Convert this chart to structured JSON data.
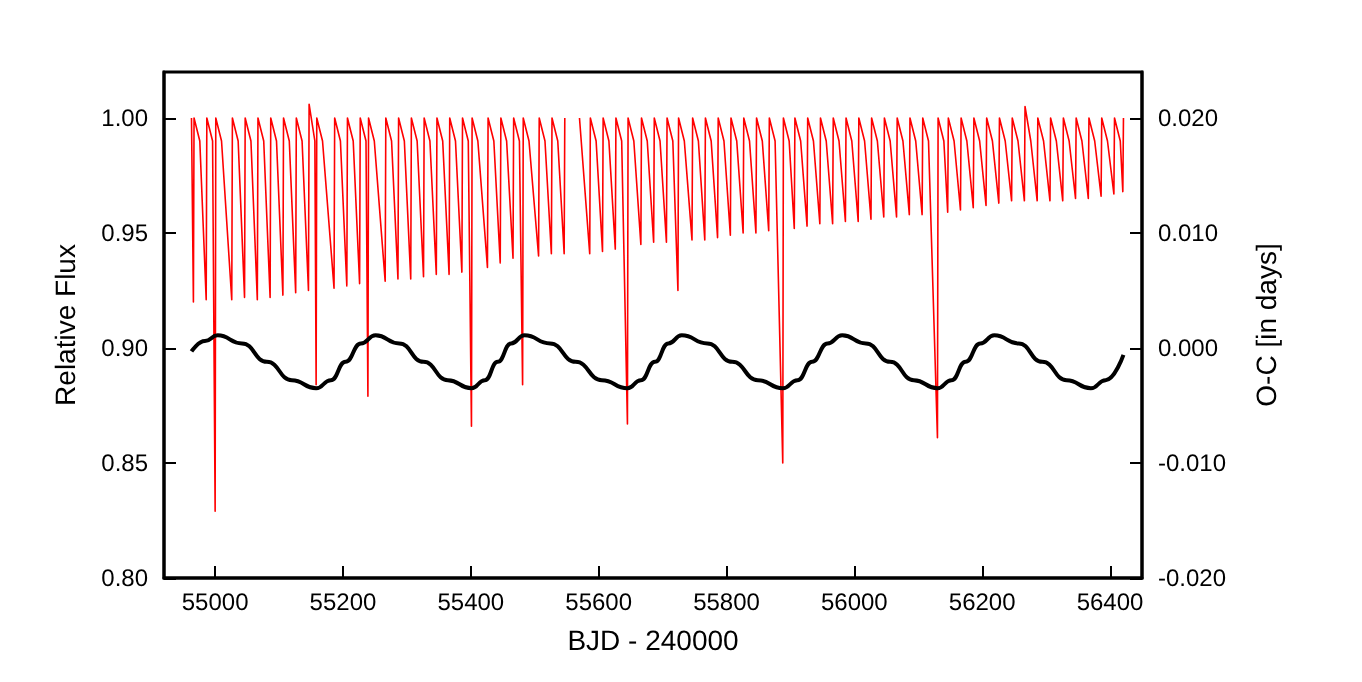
{
  "chart_data": {
    "type": "line",
    "xlabel": "BJD - 240000",
    "ylabel": "Relative Flux",
    "y2label": "O-C [in days]",
    "xlim": [
      54920,
      56450
    ],
    "xticks": [
      55000,
      55200,
      55400,
      55600,
      55800,
      56000,
      56200,
      56400
    ],
    "ylim": [
      0.8,
      1.02
    ],
    "yticks": [
      {
        "value": 0.8,
        "label": "0.80"
      },
      0.85,
      {
        "value": 0.9,
        "label": "0.90"
      },
      0.95,
      {
        "value": 1.0,
        "label": "1.00"
      }
    ],
    "y2lim": [
      -0.02,
      0.024
    ],
    "y2ticks": [
      {
        "value": -0.02,
        "label": "-0.020"
      },
      {
        "value": -0.01,
        "label": "-0.010"
      },
      {
        "value": 0,
        "label": "0.000"
      },
      {
        "value": 0.01,
        "label": "0.010"
      },
      {
        "value": 0.02,
        "label": "0.020"
      }
    ],
    "grid": false,
    "series": [
      {
        "color": "#ff0000",
        "x": [
          54963,
          54966,
          54967,
          54976,
          54986,
          54987,
          54996,
          55000,
          55001,
          55010,
          55026,
          55027,
          55036,
          55046,
          55047,
          55056,
          55066,
          55067,
          55076,
          55086,
          55087,
          55096,
          55106,
          55107,
          55116,
          55126,
          55127,
          55136,
          55146,
          55147,
          55156,
          55158,
          55159,
          55168,
          55186,
          55187,
          55196,
          55206,
          55207,
          55216,
          55226,
          55227,
          55236,
          55239,
          55240,
          55249,
          55266,
          55267,
          55276,
          55286,
          55287,
          55296,
          55306,
          55307,
          55316,
          55326,
          55327,
          55336,
          55346,
          55347,
          55356,
          55366,
          55367,
          55376,
          55386,
          55387,
          55396,
          55401,
          55402,
          55411,
          55426,
          55427,
          55436,
          55446,
          55447,
          55456,
          55466,
          55467,
          55476,
          55481,
          55482,
          55491,
          55506,
          55507,
          55516,
          55526,
          55527,
          55536,
          55546,
          55547,
          55558,
          55570,
          55586,
          55587,
          55596,
          55606,
          55607,
          55616,
          55626,
          55627,
          55636,
          55645,
          55646,
          55655,
          55666,
          55667,
          55676,
          55686,
          55687,
          55696,
          55706,
          55707,
          55716,
          55724,
          55725,
          55734,
          55746,
          55747,
          55756,
          55766,
          55767,
          55776,
          55786,
          55787,
          55796,
          55806,
          55807,
          55816,
          55826,
          55827,
          55836,
          55846,
          55847,
          55856,
          55866,
          55867,
          55876,
          55888,
          55889,
          55898,
          55906,
          55907,
          55916,
          55926,
          55927,
          55936,
          55946,
          55947,
          55956,
          55966,
          55967,
          55976,
          55986,
          55987,
          55996,
          56006,
          56007,
          56016,
          56026,
          56027,
          56036,
          56046,
          56047,
          56056,
          56066,
          56067,
          56076,
          56086,
          56087,
          56096,
          56106,
          56107,
          56116,
          56130,
          56131,
          56140,
          56146,
          56147,
          56156,
          56166,
          56167,
          56176,
          56186,
          56187,
          56196,
          56206,
          56207,
          56216,
          56226,
          56227,
          56236,
          56246,
          56247,
          56256,
          56266,
          56267,
          56276,
          56286,
          56287,
          56296,
          56306,
          56307,
          56316,
          56326,
          56327,
          56336,
          56346,
          56347,
          56356,
          56366,
          56367,
          56376,
          56386,
          56387,
          56396,
          56406,
          56407,
          56416,
          56420,
          56421
        ],
        "values": [
          1.0,
          0.92,
          1.0,
          0.99,
          0.921,
          1.0,
          0.99,
          0.829,
          1.0,
          0.99,
          0.921,
          1.0,
          0.99,
          0.922,
          1.0,
          0.99,
          0.921,
          1.0,
          0.99,
          0.922,
          1.0,
          0.99,
          0.923,
          1.0,
          0.99,
          0.924,
          1.0,
          0.99,
          0.925,
          1.006,
          0.99,
          0.884,
          1.0,
          0.99,
          0.926,
          1.0,
          0.99,
          0.927,
          1.0,
          0.99,
          0.928,
          1.0,
          0.99,
          0.879,
          1.0,
          0.99,
          0.929,
          1.0,
          0.99,
          0.93,
          1.0,
          0.99,
          0.93,
          1.0,
          0.99,
          0.931,
          1.0,
          0.99,
          0.932,
          1.0,
          0.99,
          0.932,
          1.0,
          0.99,
          0.933,
          1.0,
          0.99,
          0.866,
          1.0,
          0.99,
          0.935,
          1.0,
          0.99,
          0.937,
          1.0,
          0.99,
          0.939,
          1.0,
          0.99,
          0.884,
          1.0,
          0.99,
          0.94,
          1.0,
          0.99,
          0.941,
          1.0,
          0.99,
          0.941,
          1.0,
          null,
          1.0,
          0.941,
          1.0,
          0.99,
          0.942,
          1.0,
          0.99,
          0.943,
          1.0,
          0.99,
          0.867,
          1.0,
          0.99,
          0.945,
          1.0,
          0.99,
          0.946,
          1.0,
          0.99,
          0.946,
          1.0,
          0.99,
          0.925,
          1.0,
          0.99,
          0.947,
          1.0,
          0.99,
          0.947,
          1.0,
          0.99,
          0.948,
          1.0,
          0.99,
          0.949,
          1.0,
          0.99,
          0.95,
          1.0,
          0.99,
          0.95,
          1.0,
          0.99,
          0.951,
          1.0,
          0.99,
          0.85,
          1.0,
          0.99,
          0.952,
          1.0,
          0.99,
          0.953,
          1.0,
          0.99,
          0.954,
          1.0,
          0.99,
          0.954,
          1.0,
          0.99,
          0.955,
          1.0,
          0.99,
          0.955,
          1.0,
          0.99,
          0.956,
          1.0,
          0.99,
          0.957,
          1.0,
          0.99,
          0.957,
          1.0,
          0.99,
          0.958,
          1.0,
          0.99,
          0.958,
          1.0,
          0.99,
          0.861,
          1.0,
          0.99,
          0.959,
          1.0,
          0.99,
          0.96,
          1.0,
          0.99,
          0.961,
          1.0,
          0.99,
          0.962,
          1.0,
          0.99,
          0.963,
          1.0,
          0.99,
          0.964,
          1.0,
          0.99,
          0.964,
          1.005,
          0.99,
          0.964,
          1.0,
          0.99,
          0.964,
          1.0,
          0.99,
          0.964,
          1.0,
          0.99,
          0.965,
          1.0,
          0.99,
          0.965,
          1.0,
          0.99,
          0.966,
          1.0,
          0.99,
          0.967,
          1.0,
          0.99,
          0.968,
          1.0
        ]
      },
      {
        "color": "#000000",
        "axis": "y2",
        "x": [
          54963,
          54984,
          55004,
          55042,
          55081,
          55120,
          55158,
          55181,
          55204,
          55228,
          55251,
          55288,
          55326,
          55364,
          55401,
          55422,
          55442,
          55463,
          55484,
          55524,
          55564,
          55605,
          55645,
          55666,
          55688,
          55709,
          55730,
          55770,
          55809,
          55849,
          55888,
          55911,
          55934,
          55958,
          55981,
          56018,
          56056,
          56093,
          56130,
          56152,
          56174,
          56197,
          56219,
          56257,
          56294,
          56332,
          56370,
          56393,
          56421
        ],
        "values": [
          -0.0003,
          0.0006,
          0.0011,
          0.0004,
          -0.0012,
          -0.0028,
          -0.0035,
          -0.0028,
          -0.0012,
          0.0004,
          0.0011,
          0.0004,
          -0.0012,
          -0.0028,
          -0.0035,
          -0.0028,
          -0.0012,
          0.0004,
          0.0011,
          0.0004,
          -0.0012,
          -0.0028,
          -0.0035,
          -0.0028,
          -0.0012,
          0.0004,
          0.0011,
          0.0004,
          -0.0012,
          -0.0028,
          -0.0035,
          -0.0028,
          -0.0012,
          0.0004,
          0.0011,
          0.0004,
          -0.0012,
          -0.0028,
          -0.0035,
          -0.0028,
          -0.0012,
          0.0004,
          0.0011,
          0.0004,
          -0.0012,
          -0.0028,
          -0.0035,
          -0.0028,
          -0.0006
        ]
      }
    ]
  }
}
